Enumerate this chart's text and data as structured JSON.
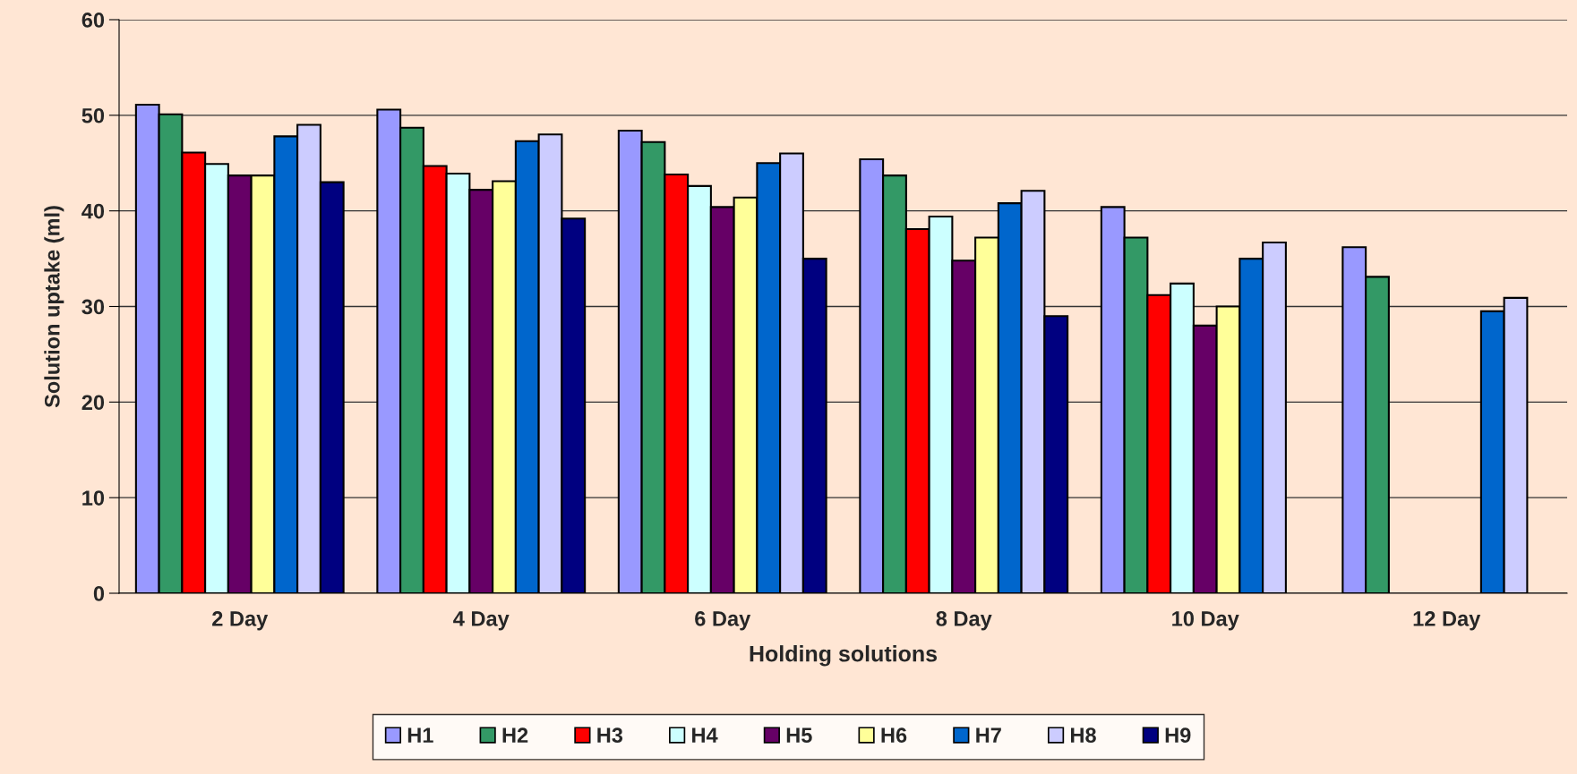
{
  "chart_data": {
    "type": "bar",
    "xlabel": "Holding solutions",
    "ylabel": "Solution uptake (ml)",
    "categories": [
      "2 Day",
      "4 Day",
      "6 Day",
      "8 Day",
      "10 Day",
      "12 Day"
    ],
    "series": [
      {
        "name": "H1",
        "color": "#9999ff",
        "values": [
          51.1,
          50.6,
          48.4,
          45.4,
          40.4,
          36.2
        ]
      },
      {
        "name": "H2",
        "color": "#339966",
        "values": [
          50.1,
          48.7,
          47.2,
          43.7,
          37.2,
          33.1
        ]
      },
      {
        "name": "H3",
        "color": "#ff0000",
        "values": [
          46.1,
          44.7,
          43.8,
          38.1,
          31.2,
          null
        ]
      },
      {
        "name": "H4",
        "color": "#ccffff",
        "values": [
          44.9,
          43.9,
          42.6,
          39.4,
          32.4,
          null
        ]
      },
      {
        "name": "H5",
        "color": "#660066",
        "values": [
          43.7,
          42.2,
          40.4,
          34.8,
          28.0,
          null
        ]
      },
      {
        "name": "H6",
        "color": "#ffff99",
        "values": [
          43.7,
          43.1,
          41.4,
          37.2,
          30.0,
          null
        ]
      },
      {
        "name": "H7",
        "color": "#0066cc",
        "values": [
          47.8,
          47.3,
          45.0,
          40.8,
          35.0,
          29.5
        ]
      },
      {
        "name": "H8",
        "color": "#ccccff",
        "values": [
          49.0,
          48.0,
          46.0,
          42.1,
          36.7,
          30.9
        ]
      },
      {
        "name": "H9",
        "color": "#000080",
        "values": [
          43.0,
          39.2,
          35.0,
          29.0,
          null,
          null
        ]
      }
    ],
    "ylim": [
      0,
      60
    ],
    "yticks": [
      0,
      10,
      20,
      30,
      40,
      50,
      60
    ],
    "grid": "y",
    "legend": "bottom"
  }
}
